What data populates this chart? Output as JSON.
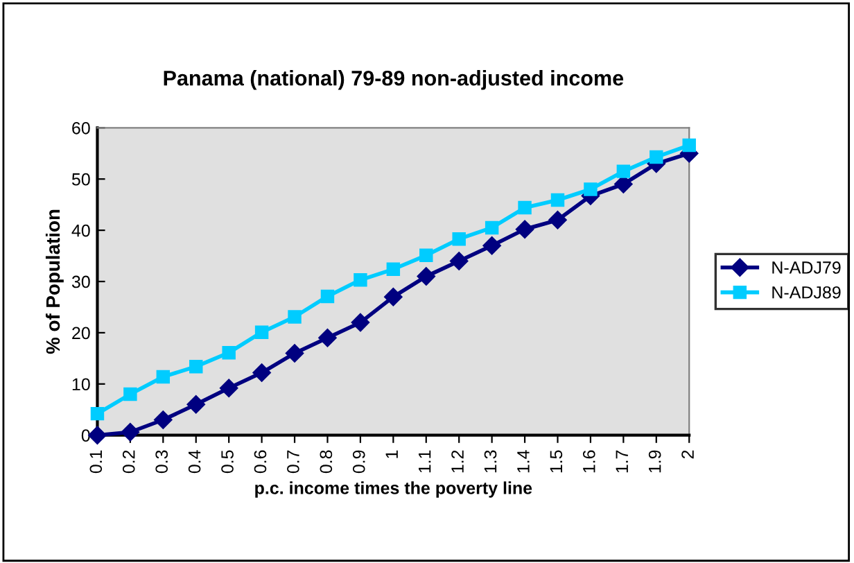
{
  "chart_data": {
    "type": "line",
    "title": "Panama (national) 79-89 non-adjusted income",
    "xlabel": "p.c. income times the poverty line",
    "ylabel": "% of Population",
    "categories": [
      "0.1",
      "0.2",
      "0.3",
      "0.4",
      "0.5",
      "0.6",
      "0.7",
      "0.8",
      "0.9",
      "1",
      "1.1",
      "1.2",
      "1.3",
      "1.4",
      "1.5",
      "1.6",
      "1.7",
      "1.9",
      "2"
    ],
    "series": [
      {
        "name": "N-ADJ79",
        "color": "#000080",
        "marker": "diamond",
        "values": [
          0,
          0.6,
          3,
          6,
          9.2,
          12.2,
          16,
          19,
          22,
          27,
          31,
          34,
          37,
          40.2,
          42,
          46.7,
          49,
          53,
          55
        ]
      },
      {
        "name": "N-ADJ89",
        "color": "#00ccff",
        "marker": "square",
        "values": [
          4.2,
          8,
          11.4,
          13.4,
          16.1,
          20.1,
          23.1,
          27.1,
          30.3,
          32.4,
          35.1,
          38.3,
          40.5,
          44.4,
          45.9,
          48,
          51.5,
          54.3,
          56.6
        ]
      }
    ],
    "ylim": [
      0,
      60
    ],
    "yticks": [
      0,
      10,
      20,
      30,
      40,
      50,
      60
    ],
    "grid": false,
    "legend": "right"
  }
}
